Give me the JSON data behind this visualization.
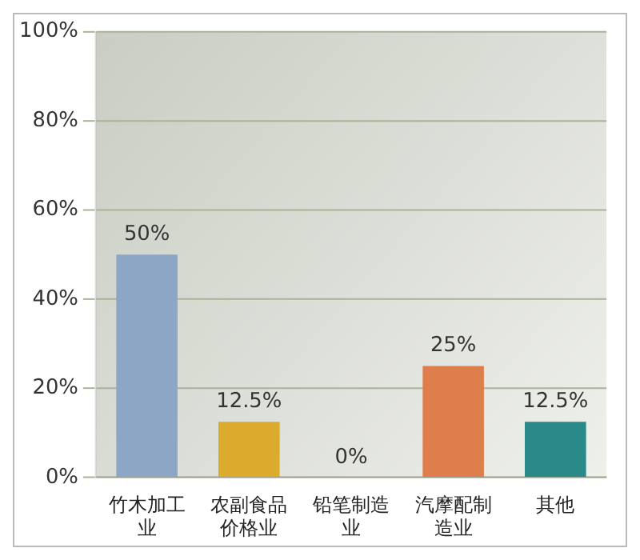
{
  "chart_data": {
    "type": "bar",
    "categories": [
      "竹木加工业",
      "农副食品价格业",
      "铅笔制造业",
      "汽摩配制造业",
      "其他"
    ],
    "values": [
      50,
      12.5,
      0,
      25,
      12.5
    ],
    "colors": [
      "#8ea6c6",
      "#dcaa2c",
      "#8cbf3c",
      "#de7e4c",
      "#2a8a8a"
    ],
    "value_labels": [
      "50%",
      "12.5%",
      "0%",
      "25%",
      "12.5%"
    ],
    "ylim": [
      0,
      100
    ],
    "yticks": [
      {
        "value": 0,
        "label": "0%"
      },
      {
        "value": 20,
        "label": "20%"
      },
      {
        "value": 40,
        "label": "40%"
      },
      {
        "value": 60,
        "label": "60%"
      },
      {
        "value": 80,
        "label": "80%"
      },
      {
        "value": 100,
        "label": "100%"
      }
    ],
    "grid": "y",
    "legend": false
  }
}
